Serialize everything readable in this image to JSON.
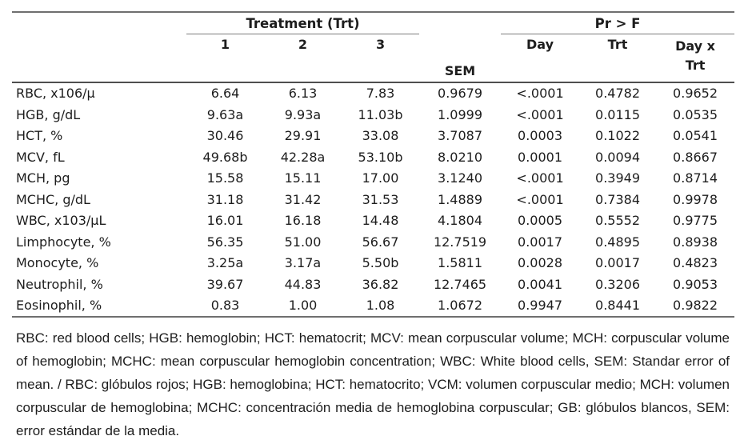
{
  "colors": {
    "text": "#1d1d1d",
    "rule_dark": "#4f4f4f",
    "rule_light": "#7d7d7d"
  },
  "header": {
    "treatment_group": "Treatment (Trt)",
    "prf_group": "Pr > F",
    "trt1": "1",
    "trt2": "2",
    "trt3": "3",
    "sem": "SEM",
    "day": "Day",
    "trt": "Trt",
    "day_x_trt_line1": "Day x",
    "day_x_trt_line2": "Trt"
  },
  "rows": [
    {
      "param": "RBC, x106/µ",
      "t1": "6.64",
      "t2": "6.13",
      "t3": "7.83",
      "sem": "0.9679",
      "day": "<.0001",
      "trt": "0.4782",
      "dxt": "0.9652"
    },
    {
      "param": "HGB, g/dL",
      "t1": "9.63a",
      "t2": "9.93a",
      "t3": "11.03b",
      "sem": "1.0999",
      "day": "<.0001",
      "trt": "0.0115",
      "dxt": "0.0535"
    },
    {
      "param": "HCT, %",
      "t1": "30.46",
      "t2": "29.91",
      "t3": "33.08",
      "sem": "3.7087",
      "day": "0.0003",
      "trt": "0.1022",
      "dxt": "0.0541"
    },
    {
      "param": "MCV, fL",
      "t1": "49.68b",
      "t2": "42.28a",
      "t3": "53.10b",
      "sem": "8.0210",
      "day": "0.0001",
      "trt": "0.0094",
      "dxt": "0.8667"
    },
    {
      "param": "MCH, pg",
      "t1": "15.58",
      "t2": "15.11",
      "t3": "17.00",
      "sem": "3.1240",
      "day": "<.0001",
      "trt": "0.3949",
      "dxt": "0.8714"
    },
    {
      "param": "MCHC, g/dL",
      "t1": "31.18",
      "t2": "31.42",
      "t3": "31.53",
      "sem": "1.4889",
      "day": "<.0001",
      "trt": "0.7384",
      "dxt": "0.9978"
    },
    {
      "param": "WBC, x103/µL",
      "t1": "16.01",
      "t2": "16.18",
      "t3": "14.48",
      "sem": "4.1804",
      "day": "0.0005",
      "trt": "0.5552",
      "dxt": "0.9775"
    },
    {
      "param": "Limphocyte, %",
      "t1": "56.35",
      "t2": "51.00",
      "t3": "56.67",
      "sem": "12.7519",
      "day": "0.0017",
      "trt": "0.4895",
      "dxt": "0.8938"
    },
    {
      "param": "Monocyte, %",
      "t1": "3.25a",
      "t2": "3.17a",
      "t3": "5.50b",
      "sem": "1.5811",
      "day": "0.0028",
      "trt": "0.0017",
      "dxt": "0.4823"
    },
    {
      "param": "Neutrophil, %",
      "t1": "39.67",
      "t2": "44.83",
      "t3": "36.82",
      "sem": "12.7465",
      "day": "0.0041",
      "trt": "0.3206",
      "dxt": "0.9053"
    },
    {
      "param": "Eosinophil, %",
      "t1": "0.83",
      "t2": "1.00",
      "t3": "1.08",
      "sem": "1.0672",
      "day": "0.9947",
      "trt": "0.8441",
      "dxt": "0.9822"
    }
  ],
  "footnote": "RBC: red blood cells; HGB: hemoglobin; HCT: hematocrit; MCV: mean corpuscular volume; MCH: corpuscular volume of hemoglobin; MCHC: mean corpuscular hemoglobin concentration; WBC: White blood cells, SEM: Standar error of mean. / RBC: glóbulos rojos; HGB: hemoglobina; HCT: hematocrito; VCM: volumen corpuscular medio; MCH: volumen corpuscular de hemoglobina; MCHC: concentración media de hemoglobina corpuscular; GB: glóbulos blancos, SEM: error estándar de la media."
}
